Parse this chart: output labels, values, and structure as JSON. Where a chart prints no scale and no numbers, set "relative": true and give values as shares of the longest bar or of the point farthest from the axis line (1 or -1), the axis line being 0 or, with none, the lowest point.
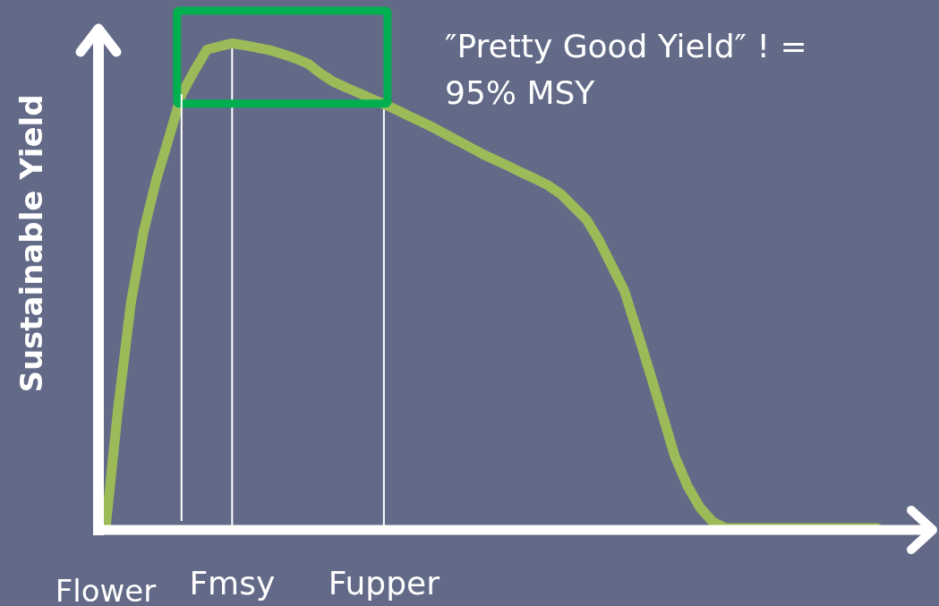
{
  "chart_data": {
    "type": "line",
    "relative": true,
    "ylabel": "Sustainable Yield",
    "categories": [
      "Flower",
      null,
      null,
      null,
      null,
      null,
      null,
      null,
      null,
      null,
      "Fmsy",
      null,
      null,
      null,
      null,
      null,
      null,
      null,
      null,
      null,
      null,
      null,
      "Fupper",
      null,
      null,
      null,
      null,
      null,
      null,
      null,
      null,
      null,
      null,
      null,
      null,
      null,
      null,
      null,
      null,
      null,
      null,
      null,
      null,
      null,
      null,
      null,
      null,
      null,
      null,
      null,
      null,
      null,
      null,
      null,
      null,
      null,
      null,
      null,
      null,
      null,
      null,
      null
    ],
    "series": [
      {
        "color": "#9bbb59",
        "values": [
          0,
          0.251,
          0.465,
          0.612,
          0.718,
          0.805,
          0.895,
          0.943,
          0.987,
          0.994,
          1,
          0.996,
          0.991,
          0.986,
          0.978,
          0.969,
          0.958,
          0.938,
          0.921,
          0.909,
          0.898,
          0.886,
          0.875,
          0.863,
          0.85,
          0.838,
          0.825,
          0.811,
          0.797,
          0.783,
          0.769,
          0.757,
          0.745,
          0.732,
          0.72,
          0.707,
          0.689,
          0.663,
          0.637,
          0.594,
          0.542,
          0.49,
          0.408,
          0.323,
          0.236,
          0.148,
          0.087,
          0.042,
          0.013,
          0,
          0,
          0,
          0,
          0,
          0,
          0,
          0,
          0,
          0,
          0,
          0,
          0
        ]
      }
    ],
    "annotations": [
      "″Pretty Good Yield″ ! =",
      "95% MSY"
    ],
    "grid": "x"
  }
}
